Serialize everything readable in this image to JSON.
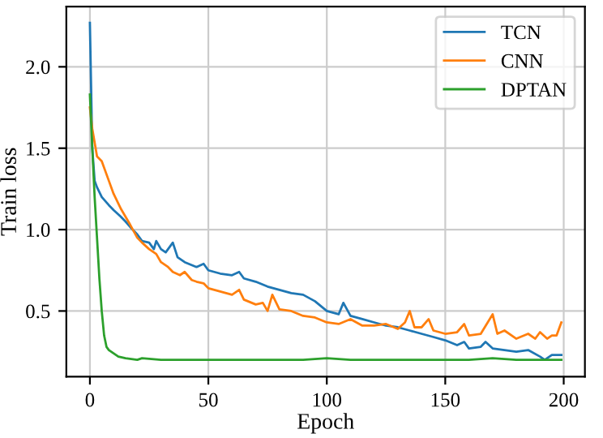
{
  "chart_data": {
    "type": "line",
    "xlabel": "Epoch",
    "ylabel": "Train loss",
    "xlim": [
      -9.95,
      208.95
    ],
    "xticks": [
      0,
      50,
      100,
      150,
      200
    ],
    "ylim": [
      0.0965,
      2.37
    ],
    "yticks": [
      0.5,
      {
        "value": 1,
        "label": "1.0"
      },
      1.5,
      {
        "value": 2,
        "label": "2.0"
      }
    ],
    "grid": true,
    "legend": "top right",
    "series": [
      {
        "name": "TCN",
        "color": "#1f77b4",
        "x": [
          0,
          1,
          2,
          3,
          5,
          8,
          10,
          13,
          15,
          18,
          20,
          22,
          25,
          27,
          28,
          30,
          32,
          35,
          37,
          40,
          45,
          48,
          50,
          55,
          60,
          63,
          65,
          70,
          75,
          80,
          85,
          90,
          95,
          100,
          105,
          107,
          110,
          115,
          120,
          125,
          130,
          135,
          140,
          145,
          150,
          155,
          158,
          160,
          165,
          167,
          170,
          175,
          180,
          185,
          190,
          192,
          195,
          199
        ],
        "values": [
          2.27,
          1.5,
          1.3,
          1.26,
          1.2,
          1.15,
          1.12,
          1.08,
          1.05,
          1.0,
          0.97,
          0.93,
          0.92,
          0.88,
          0.93,
          0.88,
          0.86,
          0.92,
          0.83,
          0.8,
          0.77,
          0.79,
          0.75,
          0.73,
          0.72,
          0.74,
          0.7,
          0.68,
          0.65,
          0.63,
          0.61,
          0.6,
          0.56,
          0.5,
          0.48,
          0.55,
          0.47,
          0.45,
          0.43,
          0.41,
          0.4,
          0.38,
          0.36,
          0.34,
          0.32,
          0.29,
          0.31,
          0.27,
          0.28,
          0.31,
          0.27,
          0.26,
          0.25,
          0.26,
          0.22,
          0.2,
          0.23,
          0.23
        ]
      },
      {
        "name": "CNN",
        "color": "#ff7f0e",
        "x": [
          0,
          1,
          3,
          5,
          8,
          10,
          13,
          15,
          17,
          20,
          22,
          25,
          28,
          30,
          33,
          35,
          38,
          40,
          43,
          45,
          48,
          50,
          55,
          60,
          63,
          65,
          70,
          73,
          75,
          77,
          80,
          85,
          90,
          95,
          100,
          105,
          110,
          115,
          120,
          125,
          130,
          133,
          135,
          137,
          140,
          143,
          145,
          150,
          155,
          158,
          160,
          165,
          170,
          172,
          175,
          180,
          185,
          188,
          190,
          193,
          195,
          197,
          199
        ],
        "values": [
          1.75,
          1.62,
          1.45,
          1.42,
          1.3,
          1.22,
          1.13,
          1.08,
          1.03,
          0.95,
          0.92,
          0.88,
          0.85,
          0.8,
          0.77,
          0.74,
          0.72,
          0.74,
          0.69,
          0.68,
          0.67,
          0.64,
          0.62,
          0.6,
          0.63,
          0.57,
          0.54,
          0.55,
          0.5,
          0.6,
          0.51,
          0.5,
          0.47,
          0.46,
          0.43,
          0.42,
          0.45,
          0.41,
          0.41,
          0.42,
          0.39,
          0.43,
          0.5,
          0.4,
          0.4,
          0.45,
          0.38,
          0.36,
          0.37,
          0.42,
          0.35,
          0.36,
          0.48,
          0.36,
          0.38,
          0.33,
          0.36,
          0.33,
          0.37,
          0.33,
          0.35,
          0.35,
          0.43
        ]
      },
      {
        "name": "DPTAN",
        "color": "#2ca02c",
        "x": [
          0,
          1,
          2,
          3,
          4,
          5,
          6,
          7,
          8,
          10,
          12,
          15,
          20,
          22,
          30,
          40,
          50,
          60,
          70,
          80,
          90,
          100,
          110,
          120,
          130,
          140,
          150,
          160,
          170,
          180,
          190,
          199
        ],
        "values": [
          1.83,
          1.5,
          1.2,
          0.95,
          0.7,
          0.5,
          0.35,
          0.28,
          0.26,
          0.24,
          0.22,
          0.21,
          0.2,
          0.21,
          0.2,
          0.2,
          0.2,
          0.2,
          0.2,
          0.2,
          0.2,
          0.21,
          0.2,
          0.2,
          0.2,
          0.2,
          0.2,
          0.2,
          0.21,
          0.2,
          0.2,
          0.2
        ]
      }
    ]
  }
}
